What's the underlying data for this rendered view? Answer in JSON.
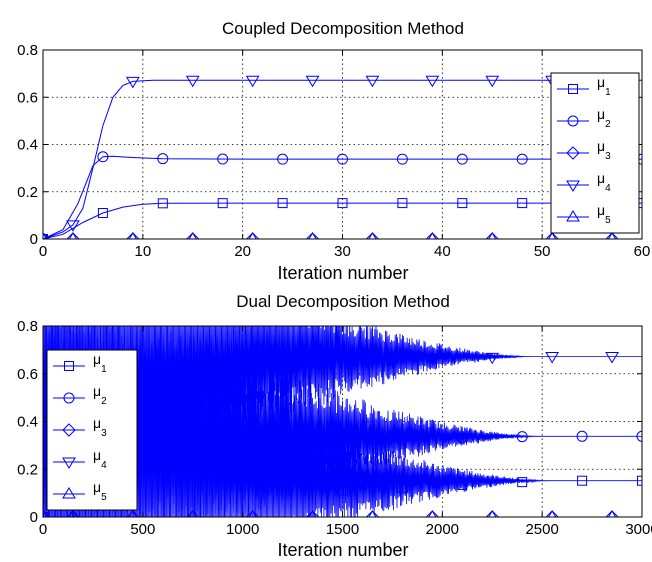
{
  "chart_data": [
    {
      "type": "line",
      "title": "Coupled Decomposition Method",
      "xlabel": "Iteration number",
      "ylabel": "",
      "xlim": [
        0,
        60
      ],
      "ylim": [
        0,
        0.8
      ],
      "xticks": [
        "0",
        "10",
        "20",
        "30",
        "40",
        "50",
        "60"
      ],
      "yticks": [
        "0",
        "0.2",
        "0.4",
        "0.6",
        "0.8"
      ],
      "grid": true,
      "legend_position": "right",
      "color": "#0000ff",
      "series": [
        {
          "name": "μ",
          "sub": "1",
          "marker": "square",
          "marker_x": [
            0,
            6,
            12,
            18,
            24,
            30,
            36,
            42,
            48,
            54,
            60
          ],
          "points": [
            [
              0,
              0
            ],
            [
              2,
              0.02
            ],
            [
              4,
              0.07
            ],
            [
              6,
              0.11
            ],
            [
              8,
              0.135
            ],
            [
              10,
              0.147
            ],
            [
              12,
              0.151
            ],
            [
              20,
              0.152
            ],
            [
              60,
              0.152
            ]
          ]
        },
        {
          "name": "μ",
          "sub": "2",
          "marker": "circle",
          "marker_x": [
            0,
            6,
            12,
            18,
            24,
            30,
            36,
            42,
            48,
            54,
            60
          ],
          "points": [
            [
              0,
              0
            ],
            [
              2,
              0.04
            ],
            [
              3.5,
              0.15
            ],
            [
              5,
              0.31
            ],
            [
              6,
              0.348
            ],
            [
              7,
              0.35
            ],
            [
              9,
              0.345
            ],
            [
              12,
              0.34
            ],
            [
              20,
              0.338
            ],
            [
              60,
              0.338
            ]
          ]
        },
        {
          "name": "μ",
          "sub": "3",
          "marker": "diamond",
          "marker_x": [
            0,
            3,
            9,
            15,
            21,
            27,
            33,
            39,
            45,
            51,
            57
          ],
          "points": [
            [
              0,
              0
            ],
            [
              60,
              0
            ]
          ]
        },
        {
          "name": "μ",
          "sub": "4",
          "marker": "triangle-down",
          "marker_x": [
            3,
            9,
            15,
            21,
            27,
            33,
            39,
            45,
            51,
            57
          ],
          "points": [
            [
              0,
              0
            ],
            [
              2,
              0.03
            ],
            [
              3,
              0.06
            ],
            [
              4,
              0.13
            ],
            [
              5,
              0.3
            ],
            [
              6,
              0.48
            ],
            [
              7,
              0.6
            ],
            [
              8,
              0.65
            ],
            [
              9,
              0.667
            ],
            [
              11,
              0.672
            ],
            [
              60,
              0.672
            ]
          ]
        },
        {
          "name": "μ",
          "sub": "5",
          "marker": "triangle-up",
          "marker_x": [
            0,
            3,
            9,
            15,
            21,
            27,
            33,
            39,
            45,
            51,
            57
          ],
          "points": [
            [
              0,
              0
            ],
            [
              60,
              0
            ]
          ]
        }
      ]
    },
    {
      "type": "line",
      "title": "Dual Decomposition Method",
      "xlabel": "Iteration number",
      "ylabel": "",
      "xlim": [
        0,
        3000
      ],
      "ylim": [
        0,
        0.8
      ],
      "xticks": [
        "0",
        "500",
        "1000",
        "1500",
        "2000",
        "2500",
        "3000"
      ],
      "yticks": [
        "0",
        "0.2",
        "0.4",
        "0.6",
        "0.8"
      ],
      "grid": true,
      "legend_position": "left",
      "color": "#0000ff",
      "series": [
        {
          "name": "μ",
          "sub": "1",
          "marker": "square",
          "marker_x": [
            0,
            1500,
            1800,
            2100,
            2400,
            2700,
            3000
          ],
          "points": [
            [
              0,
              0
            ],
            [
              3000,
              0.152
            ]
          ],
          "oscillation": {
            "center": 0.152,
            "start_amp": 0.8,
            "decay_end": 2550
          }
        },
        {
          "name": "μ",
          "sub": "2",
          "marker": "circle",
          "marker_x": [
            0,
            1500,
            1800,
            2100,
            2400,
            2700,
            3000
          ],
          "points": [
            [
              0,
              0
            ],
            [
              3000,
              0.338
            ]
          ],
          "oscillation": {
            "center": 0.338,
            "start_amp": 0.8,
            "decay_end": 2500
          }
        },
        {
          "name": "μ",
          "sub": "3",
          "marker": "diamond",
          "marker_x": [
            0,
            150,
            450,
            750,
            1050,
            1350,
            1650,
            1950,
            2250,
            2550,
            2850
          ],
          "points": [
            [
              0,
              0
            ],
            [
              3000,
              0
            ]
          ]
        },
        {
          "name": "μ",
          "sub": "4",
          "marker": "triangle-down",
          "marker_x": [
            1350,
            1650,
            1950,
            2250,
            2550,
            2850
          ],
          "points": [
            [
              0,
              0
            ],
            [
              3000,
              0.672
            ]
          ],
          "oscillation": {
            "center": 0.672,
            "start_amp": 0.8,
            "decay_end": 2450
          }
        },
        {
          "name": "μ",
          "sub": "5",
          "marker": "triangle-up",
          "marker_x": [
            0,
            150,
            450,
            750,
            1050,
            1350,
            1650,
            1950,
            2250,
            2550,
            2850
          ],
          "points": [
            [
              0,
              0
            ],
            [
              3000,
              0
            ]
          ]
        }
      ]
    }
  ]
}
